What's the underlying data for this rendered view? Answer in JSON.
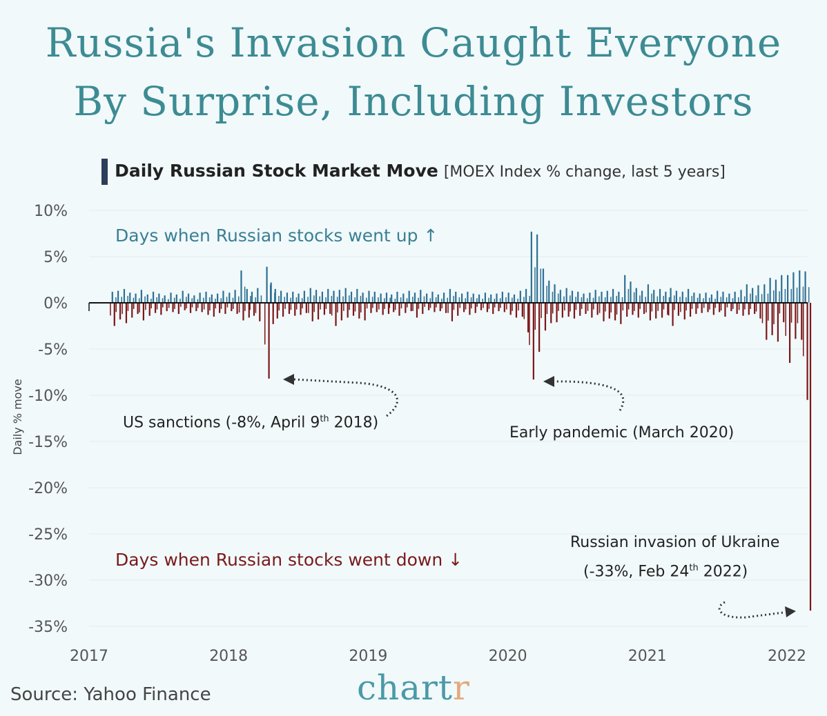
{
  "title_line1": "Russia's Invasion Caught Everyone",
  "title_line2": "By Surprise, Including Investors",
  "subtitle_bold": "Daily Russian Stock Market Move",
  "subtitle_light": "[MOEX Index % change, last 5 years]",
  "source": "Source: Yahoo Finance",
  "logo": {
    "main": "chart",
    "accent": "r"
  },
  "colors": {
    "up": "#2e6f92",
    "down": "#7c1516",
    "title": "#3d8b93",
    "background": "#f1f9fb"
  },
  "annotations": {
    "up_label": "Days when Russian stocks went up ↑",
    "down_label": "Days when Russian stocks went down ↓",
    "sanctions": {
      "pre": "US sanctions (-8%, April 9",
      "sup": "th",
      "post": " 2018)"
    },
    "pandemic": "Early pandemic (March 2020)",
    "invasion_line1": "Russian invasion of Ukraine",
    "invasion_line2": {
      "pre": "(-33%, Feb 24",
      "sup": "th",
      "post": " 2022)"
    }
  },
  "chart_data": {
    "type": "bar",
    "title": "Daily Russian Stock Market Move",
    "ylabel": "Daily % move",
    "xlabel": "",
    "ylim": [
      -35,
      10
    ],
    "yticks": [
      10,
      5,
      0,
      -5,
      -10,
      -15,
      -20,
      -25,
      -30,
      -35
    ],
    "ytick_labels": [
      "10%",
      "5%",
      "0%",
      "-5%",
      "-10%",
      "-15%",
      "-20%",
      "-25%",
      "-30%",
      "-35%"
    ],
    "xlim": [
      "2017-01-01",
      "2022-03-01"
    ],
    "xtick_labels": [
      "2017",
      "2018",
      "2019",
      "2020",
      "2021",
      "2022"
    ],
    "grid": true,
    "series_note_fields": [
      "date",
      "max_up",
      "max_down"
    ],
    "series": [
      [
        "2017-03-01",
        1.2,
        -2.5
      ],
      [
        "2017-03-16",
        1.3,
        -1.8
      ],
      [
        "2017-04-01",
        1.5,
        -2.2
      ],
      [
        "2017-04-16",
        1.1,
        -1.6
      ],
      [
        "2017-05-01",
        1.0,
        -1.2
      ],
      [
        "2017-05-16",
        1.4,
        -1.9
      ],
      [
        "2017-06-01",
        0.9,
        -1.4
      ],
      [
        "2017-06-16",
        1.2,
        -1.1
      ],
      [
        "2017-07-01",
        1.0,
        -1.3
      ],
      [
        "2017-07-16",
        0.8,
        -0.9
      ],
      [
        "2017-08-01",
        1.1,
        -1.0
      ],
      [
        "2017-08-16",
        0.9,
        -1.2
      ],
      [
        "2017-09-01",
        1.3,
        -0.8
      ],
      [
        "2017-09-16",
        1.0,
        -1.1
      ],
      [
        "2017-10-01",
        0.8,
        -0.9
      ],
      [
        "2017-10-16",
        1.1,
        -1.0
      ],
      [
        "2017-11-01",
        1.2,
        -1.3
      ],
      [
        "2017-11-16",
        0.9,
        -1.5
      ],
      [
        "2017-12-01",
        1.0,
        -1.1
      ],
      [
        "2017-12-16",
        1.3,
        -1.2
      ],
      [
        "2018-01-01",
        1.1,
        -0.9
      ],
      [
        "2018-01-16",
        1.4,
        -1.2
      ],
      [
        "2018-02-01",
        3.5,
        -1.9
      ],
      [
        "2018-02-16",
        1.5,
        -1.6
      ],
      [
        "2018-03-01",
        1.2,
        -1.4
      ],
      [
        "2018-03-16",
        1.6,
        -2.0
      ],
      [
        "2018-04-09",
        3.9,
        -8.2
      ],
      [
        "2018-04-20",
        2.2,
        -2.3
      ],
      [
        "2018-05-01",
        1.5,
        -1.7
      ],
      [
        "2018-05-16",
        1.3,
        -1.5
      ],
      [
        "2018-06-01",
        1.1,
        -1.2
      ],
      [
        "2018-06-16",
        1.2,
        -1.4
      ],
      [
        "2018-07-01",
        1.0,
        -1.3
      ],
      [
        "2018-07-16",
        1.3,
        -1.1
      ],
      [
        "2018-08-01",
        1.6,
        -2.0
      ],
      [
        "2018-08-16",
        1.4,
        -1.8
      ],
      [
        "2018-09-01",
        1.2,
        -1.3
      ],
      [
        "2018-09-16",
        1.5,
        -1.2
      ],
      [
        "2018-10-01",
        1.3,
        -2.5
      ],
      [
        "2018-10-16",
        1.4,
        -1.9
      ],
      [
        "2018-11-01",
        1.6,
        -1.6
      ],
      [
        "2018-11-16",
        1.2,
        -1.4
      ],
      [
        "2018-12-01",
        1.5,
        -1.7
      ],
      [
        "2018-12-16",
        1.1,
        -1.9
      ],
      [
        "2019-01-01",
        1.3,
        -1.1
      ],
      [
        "2019-01-16",
        1.2,
        -1.0
      ],
      [
        "2019-02-01",
        1.0,
        -1.3
      ],
      [
        "2019-02-16",
        1.1,
        -1.2
      ],
      [
        "2019-03-01",
        0.9,
        -1.0
      ],
      [
        "2019-03-16",
        1.2,
        -1.4
      ],
      [
        "2019-04-01",
        1.0,
        -1.1
      ],
      [
        "2019-04-16",
        1.3,
        -0.9
      ],
      [
        "2019-05-01",
        1.1,
        -1.6
      ],
      [
        "2019-05-16",
        1.4,
        -1.2
      ],
      [
        "2019-06-01",
        1.0,
        -0.8
      ],
      [
        "2019-06-16",
        1.2,
        -1.0
      ],
      [
        "2019-07-01",
        0.9,
        -0.9
      ],
      [
        "2019-07-16",
        1.1,
        -1.1
      ],
      [
        "2019-08-01",
        1.5,
        -2.0
      ],
      [
        "2019-08-16",
        1.2,
        -1.4
      ],
      [
        "2019-09-01",
        1.0,
        -1.0
      ],
      [
        "2019-09-16",
        1.2,
        -1.3
      ],
      [
        "2019-10-01",
        1.0,
        -1.1
      ],
      [
        "2019-10-16",
        0.9,
        -0.8
      ],
      [
        "2019-11-01",
        1.1,
        -1.0
      ],
      [
        "2019-11-16",
        0.9,
        -1.2
      ],
      [
        "2019-12-01",
        1.0,
        -0.9
      ],
      [
        "2019-12-16",
        1.2,
        -1.0
      ],
      [
        "2020-01-01",
        1.1,
        -1.3
      ],
      [
        "2020-01-16",
        0.9,
        -1.6
      ],
      [
        "2020-02-01",
        1.3,
        -1.5
      ],
      [
        "2020-02-16",
        1.5,
        -3.2
      ],
      [
        "2020-03-01",
        7.7,
        -8.3
      ],
      [
        "2020-03-16",
        7.4,
        -5.3
      ],
      [
        "2020-04-01",
        3.7,
        -3.0
      ],
      [
        "2020-04-16",
        2.4,
        -2.2
      ],
      [
        "2020-05-01",
        2.0,
        -2.1
      ],
      [
        "2020-05-16",
        1.4,
        -1.6
      ],
      [
        "2020-06-01",
        1.6,
        -1.5
      ],
      [
        "2020-06-16",
        1.3,
        -1.7
      ],
      [
        "2020-07-01",
        1.2,
        -1.4
      ],
      [
        "2020-07-16",
        1.0,
        -1.2
      ],
      [
        "2020-08-01",
        1.1,
        -1.6
      ],
      [
        "2020-08-16",
        1.4,
        -1.3
      ],
      [
        "2020-09-01",
        1.2,
        -2.0
      ],
      [
        "2020-09-16",
        1.3,
        -1.7
      ],
      [
        "2020-10-01",
        1.5,
        -1.9
      ],
      [
        "2020-10-16",
        1.2,
        -2.3
      ],
      [
        "2020-11-01",
        3.0,
        -1.5
      ],
      [
        "2020-11-16",
        2.3,
        -1.3
      ],
      [
        "2020-12-01",
        1.6,
        -1.6
      ],
      [
        "2020-12-16",
        1.3,
        -1.2
      ],
      [
        "2021-01-01",
        2.0,
        -1.9
      ],
      [
        "2021-01-16",
        1.4,
        -1.7
      ],
      [
        "2021-02-01",
        1.5,
        -1.6
      ],
      [
        "2021-02-16",
        1.2,
        -1.3
      ],
      [
        "2021-03-01",
        1.6,
        -2.5
      ],
      [
        "2021-03-16",
        1.3,
        -1.4
      ],
      [
        "2021-04-01",
        1.2,
        -1.8
      ],
      [
        "2021-04-16",
        1.5,
        -1.5
      ],
      [
        "2021-05-01",
        1.1,
        -1.2
      ],
      [
        "2021-05-16",
        1.0,
        -1.1
      ],
      [
        "2021-06-01",
        1.1,
        -1.0
      ],
      [
        "2021-06-16",
        0.9,
        -1.3
      ],
      [
        "2021-07-01",
        1.3,
        -1.0
      ],
      [
        "2021-07-16",
        1.2,
        -1.5
      ],
      [
        "2021-08-01",
        1.0,
        -0.9
      ],
      [
        "2021-08-16",
        1.2,
        -1.2
      ],
      [
        "2021-09-01",
        1.4,
        -1.4
      ],
      [
        "2021-09-16",
        2.0,
        -1.3
      ],
      [
        "2021-10-01",
        1.6,
        -1.2
      ],
      [
        "2021-10-16",
        1.9,
        -1.7
      ],
      [
        "2021-11-01",
        2.0,
        -4.0
      ],
      [
        "2021-11-16",
        2.7,
        -3.5
      ],
      [
        "2021-12-01",
        2.5,
        -4.2
      ],
      [
        "2021-12-16",
        3.0,
        -2.1
      ],
      [
        "2022-01-01",
        3.0,
        -6.5
      ],
      [
        "2022-01-16",
        3.3,
        -3.9
      ],
      [
        "2022-02-01",
        3.5,
        -4.0
      ],
      [
        "2022-02-16",
        3.4,
        -10.5
      ],
      [
        "2022-02-24",
        0,
        -33.3
      ]
    ]
  }
}
